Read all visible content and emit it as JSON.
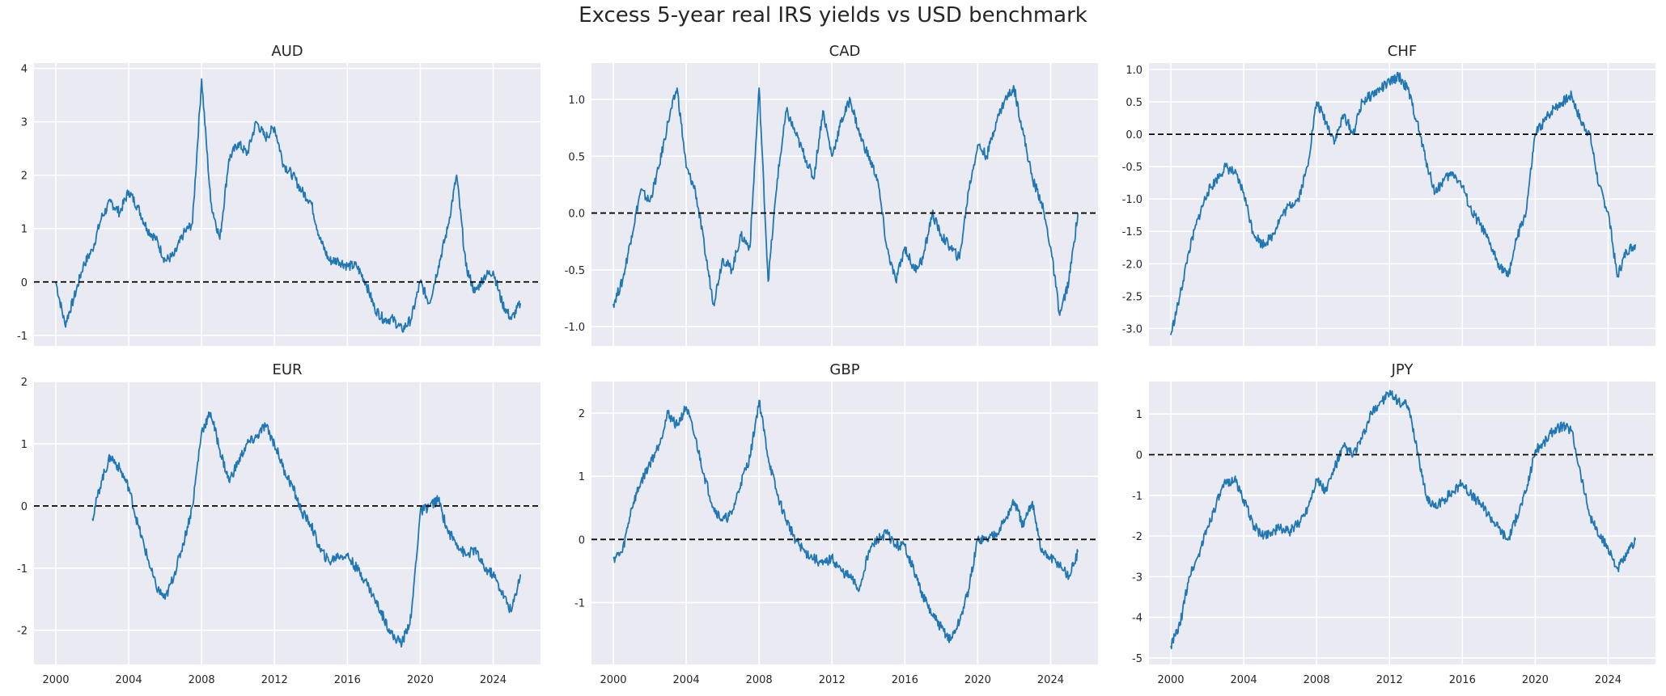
{
  "figure": {
    "title": "Excess 5-year real IRS yields vs USD benchmark",
    "style": {
      "background": "#eaeaf2",
      "grid": "#ffffff",
      "line": "#1f77b4",
      "zero_line": "#000000"
    }
  },
  "chart_data": [
    {
      "type": "line",
      "title": "AUD",
      "xlabel": "",
      "ylabel": "",
      "xlim": [
        1998.8,
        2026.6
      ],
      "ylim": [
        -1.2,
        4.1
      ],
      "yticks": [
        -1,
        0,
        1,
        2,
        3,
        4
      ],
      "xticks": [],
      "grid": true,
      "reference_line_y": 0,
      "x": [
        2000.0,
        2000.5,
        2001.0,
        2001.5,
        2002.0,
        2002.5,
        2003.0,
        2003.5,
        2004.0,
        2004.5,
        2005.0,
        2005.5,
        2006.0,
        2006.5,
        2007.0,
        2007.5,
        2008.0,
        2008.5,
        2009.0,
        2009.5,
        2010.0,
        2010.5,
        2011.0,
        2011.5,
        2012.0,
        2012.5,
        2013.0,
        2013.5,
        2014.0,
        2014.5,
        2015.0,
        2015.5,
        2016.0,
        2016.5,
        2017.0,
        2017.5,
        2018.0,
        2018.5,
        2019.0,
        2019.5,
        2020.0,
        2020.5,
        2021.0,
        2021.5,
        2022.0,
        2022.5,
        2023.0,
        2023.5,
        2024.0,
        2024.5,
        2025.0,
        2025.5
      ],
      "values": [
        0.0,
        -0.8,
        -0.3,
        0.3,
        0.6,
        1.2,
        1.5,
        1.3,
        1.7,
        1.4,
        1.0,
        0.8,
        0.4,
        0.5,
        0.9,
        1.1,
        3.8,
        1.5,
        0.8,
        2.3,
        2.6,
        2.4,
        3.0,
        2.7,
        2.9,
        2.2,
        2.0,
        1.7,
        1.5,
        0.8,
        0.4,
        0.4,
        0.3,
        0.3,
        0.0,
        -0.5,
        -0.7,
        -0.7,
        -0.9,
        -0.7,
        0.0,
        -0.4,
        0.3,
        1.0,
        2.0,
        0.3,
        -0.2,
        0.1,
        0.2,
        -0.4,
        -0.7,
        -0.4
      ]
    },
    {
      "type": "line",
      "title": "CAD",
      "xlabel": "",
      "ylabel": "",
      "xlim": [
        1998.8,
        2026.6
      ],
      "ylim": [
        -1.17,
        1.32
      ],
      "yticks": [
        -1.0,
        -0.5,
        0.0,
        0.5,
        1.0
      ],
      "xticks": [],
      "grid": true,
      "reference_line_y": 0,
      "x": [
        2000.0,
        2000.5,
        2001.0,
        2001.5,
        2002.0,
        2002.5,
        2003.0,
        2003.5,
        2004.0,
        2004.5,
        2005.0,
        2005.5,
        2006.0,
        2006.5,
        2007.0,
        2007.5,
        2008.0,
        2008.5,
        2009.0,
        2009.5,
        2010.0,
        2010.5,
        2011.0,
        2011.5,
        2012.0,
        2012.5,
        2013.0,
        2013.5,
        2014.0,
        2014.5,
        2015.0,
        2015.5,
        2016.0,
        2016.5,
        2017.0,
        2017.5,
        2018.0,
        2018.5,
        2019.0,
        2019.5,
        2020.0,
        2020.5,
        2021.0,
        2021.5,
        2022.0,
        2022.5,
        2023.0,
        2023.5,
        2024.0,
        2024.5,
        2025.0,
        2025.5
      ],
      "values": [
        -0.8,
        -0.6,
        -0.2,
        0.2,
        0.1,
        0.4,
        0.8,
        1.1,
        0.4,
        0.2,
        -0.3,
        -0.8,
        -0.4,
        -0.5,
        -0.2,
        -0.3,
        1.1,
        -0.6,
        0.3,
        0.9,
        0.7,
        0.5,
        0.3,
        0.9,
        0.5,
        0.8,
        1.0,
        0.7,
        0.5,
        0.3,
        -0.3,
        -0.6,
        -0.3,
        -0.5,
        -0.4,
        0.0,
        -0.2,
        -0.3,
        -0.4,
        0.2,
        0.6,
        0.5,
        0.8,
        1.0,
        1.1,
        0.7,
        0.3,
        0.1,
        -0.3,
        -0.9,
        -0.6,
        0.0
      ]
    },
    {
      "type": "line",
      "title": "CHF",
      "xlabel": "",
      "ylabel": "",
      "xlim": [
        1998.8,
        2026.6
      ],
      "ylim": [
        -3.27,
        1.1
      ],
      "yticks": [
        -3.0,
        -2.5,
        -2.0,
        -1.5,
        -1.0,
        -0.5,
        0.0,
        0.5,
        1.0
      ],
      "xticks": [],
      "grid": true,
      "reference_line_y": 0,
      "x": [
        2000.0,
        2000.5,
        2001.0,
        2001.5,
        2002.0,
        2002.5,
        2003.0,
        2003.5,
        2004.0,
        2004.5,
        2005.0,
        2005.5,
        2006.0,
        2006.5,
        2007.0,
        2007.5,
        2008.0,
        2008.5,
        2009.0,
        2009.5,
        2010.0,
        2010.5,
        2011.0,
        2011.5,
        2012.0,
        2012.5,
        2013.0,
        2013.5,
        2014.0,
        2014.5,
        2015.0,
        2015.5,
        2016.0,
        2016.5,
        2017.0,
        2017.5,
        2018.0,
        2018.5,
        2019.0,
        2019.5,
        2020.0,
        2020.5,
        2021.0,
        2021.5,
        2022.0,
        2022.5,
        2023.0,
        2023.5,
        2024.0,
        2024.5,
        2025.0,
        2025.5
      ],
      "values": [
        -3.1,
        -2.5,
        -1.8,
        -1.3,
        -0.9,
        -0.7,
        -0.5,
        -0.6,
        -0.9,
        -1.5,
        -1.7,
        -1.6,
        -1.3,
        -1.1,
        -1.0,
        -0.5,
        0.5,
        0.2,
        -0.1,
        0.3,
        0.0,
        0.5,
        0.6,
        0.7,
        0.8,
        0.9,
        0.7,
        0.2,
        -0.4,
        -0.9,
        -0.7,
        -0.6,
        -0.8,
        -1.2,
        -1.4,
        -1.7,
        -2.0,
        -2.2,
        -1.6,
        -1.2,
        0.0,
        0.2,
        0.4,
        0.5,
        0.6,
        0.2,
        0.0,
        -0.8,
        -1.2,
        -2.2,
        -1.8,
        -1.7
      ]
    },
    {
      "type": "line",
      "title": "EUR",
      "xlabel": "",
      "ylabel": "",
      "xlim": [
        1998.8,
        2026.6
      ],
      "ylim": [
        -2.55,
        2.0
      ],
      "yticks": [
        -2,
        -1,
        0,
        1,
        2
      ],
      "xticks": [
        2000,
        2004,
        2008,
        2012,
        2016,
        2020,
        2024
      ],
      "grid": true,
      "reference_line_y": 0,
      "x": [
        2002.0,
        2002.5,
        2003.0,
        2003.5,
        2004.0,
        2004.5,
        2005.0,
        2005.5,
        2006.0,
        2006.5,
        2007.0,
        2007.5,
        2008.0,
        2008.5,
        2009.0,
        2009.5,
        2010.0,
        2010.5,
        2011.0,
        2011.5,
        2012.0,
        2012.5,
        2013.0,
        2013.5,
        2014.0,
        2014.5,
        2015.0,
        2015.5,
        2016.0,
        2016.5,
        2017.0,
        2017.5,
        2018.0,
        2018.5,
        2019.0,
        2019.5,
        2020.0,
        2020.5,
        2021.0,
        2021.5,
        2022.0,
        2022.5,
        2023.0,
        2023.5,
        2024.0,
        2024.5,
        2025.0,
        2025.5
      ],
      "values": [
        -0.2,
        0.4,
        0.8,
        0.6,
        0.3,
        -0.3,
        -0.8,
        -1.3,
        -1.5,
        -1.1,
        -0.6,
        0.0,
        1.2,
        1.5,
        0.9,
        0.4,
        0.7,
        1.0,
        1.1,
        1.3,
        1.0,
        0.6,
        0.3,
        -0.1,
        -0.3,
        -0.7,
        -0.9,
        -0.8,
        -0.8,
        -1.0,
        -1.2,
        -1.5,
        -1.8,
        -2.1,
        -2.2,
        -1.8,
        -0.1,
        0.0,
        0.1,
        -0.4,
        -0.6,
        -0.8,
        -0.7,
        -1.0,
        -1.1,
        -1.4,
        -1.7,
        -1.1
      ]
    },
    {
      "type": "line",
      "title": "GBP",
      "xlabel": "",
      "ylabel": "",
      "xlim": [
        1998.8,
        2026.6
      ],
      "ylim": [
        -1.98,
        2.5
      ],
      "yticks": [
        -1,
        0,
        1,
        2
      ],
      "xticks": [
        2000,
        2004,
        2008,
        2012,
        2016,
        2020,
        2024
      ],
      "grid": true,
      "reference_line_y": 0,
      "x": [
        2000.0,
        2000.5,
        2001.0,
        2001.5,
        2002.0,
        2002.5,
        2003.0,
        2003.5,
        2004.0,
        2004.5,
        2005.0,
        2005.5,
        2006.0,
        2006.5,
        2007.0,
        2007.5,
        2008.0,
        2008.5,
        2009.0,
        2009.5,
        2010.0,
        2010.5,
        2011.0,
        2011.5,
        2012.0,
        2012.5,
        2013.0,
        2013.5,
        2014.0,
        2014.5,
        2015.0,
        2015.5,
        2016.0,
        2016.5,
        2017.0,
        2017.5,
        2018.0,
        2018.5,
        2019.0,
        2019.5,
        2020.0,
        2020.5,
        2021.0,
        2021.5,
        2022.0,
        2022.5,
        2023.0,
        2023.5,
        2024.0,
        2024.5,
        2025.0,
        2025.5
      ],
      "values": [
        -0.3,
        -0.2,
        0.5,
        0.9,
        1.2,
        1.5,
        2.0,
        1.8,
        2.1,
        1.6,
        1.0,
        0.5,
        0.3,
        0.4,
        0.9,
        1.3,
        2.2,
        1.3,
        0.7,
        0.3,
        0.0,
        -0.2,
        -0.3,
        -0.4,
        -0.3,
        -0.5,
        -0.6,
        -0.8,
        -0.2,
        0.0,
        0.1,
        -0.1,
        -0.1,
        -0.5,
        -0.9,
        -1.2,
        -1.4,
        -1.6,
        -1.3,
        -0.8,
        0.0,
        0.0,
        0.1,
        0.3,
        0.6,
        0.2,
        0.6,
        -0.2,
        -0.3,
        -0.4,
        -0.6,
        -0.2
      ]
    },
    {
      "type": "line",
      "title": "JPY",
      "xlabel": "",
      "ylabel": "",
      "xlim": [
        1998.8,
        2026.6
      ],
      "ylim": [
        -5.16,
        1.8
      ],
      "yticks": [
        -5,
        -4,
        -3,
        -2,
        -1,
        0,
        1
      ],
      "xticks": [
        2000,
        2004,
        2008,
        2012,
        2016,
        2020,
        2024
      ],
      "grid": true,
      "reference_line_y": 0,
      "x": [
        2000.0,
        2000.5,
        2001.0,
        2001.5,
        2002.0,
        2002.5,
        2003.0,
        2003.5,
        2004.0,
        2004.5,
        2005.0,
        2005.5,
        2006.0,
        2006.5,
        2007.0,
        2007.5,
        2008.0,
        2008.5,
        2009.0,
        2009.5,
        2010.0,
        2010.5,
        2011.0,
        2011.5,
        2012.0,
        2012.5,
        2013.0,
        2013.5,
        2014.0,
        2014.5,
        2015.0,
        2015.5,
        2016.0,
        2016.5,
        2017.0,
        2017.5,
        2018.0,
        2018.5,
        2019.0,
        2019.5,
        2020.0,
        2020.5,
        2021.0,
        2021.5,
        2022.0,
        2022.5,
        2023.0,
        2023.5,
        2024.0,
        2024.5,
        2025.0,
        2025.5
      ],
      "values": [
        -4.7,
        -4.2,
        -3.0,
        -2.5,
        -1.8,
        -1.2,
        -0.7,
        -0.6,
        -1.1,
        -1.7,
        -2.0,
        -1.9,
        -1.8,
        -1.9,
        -1.7,
        -1.3,
        -0.6,
        -0.9,
        -0.3,
        0.2,
        0.0,
        0.4,
        1.0,
        1.3,
        1.5,
        1.3,
        1.2,
        0.2,
        -1.0,
        -1.3,
        -1.1,
        -0.9,
        -0.7,
        -1.0,
        -1.2,
        -1.5,
        -1.8,
        -2.1,
        -1.5,
        -0.9,
        0.1,
        0.3,
        0.6,
        0.7,
        0.6,
        -0.5,
        -1.5,
        -2.0,
        -2.3,
        -2.8,
        -2.5,
        -2.1
      ]
    }
  ]
}
